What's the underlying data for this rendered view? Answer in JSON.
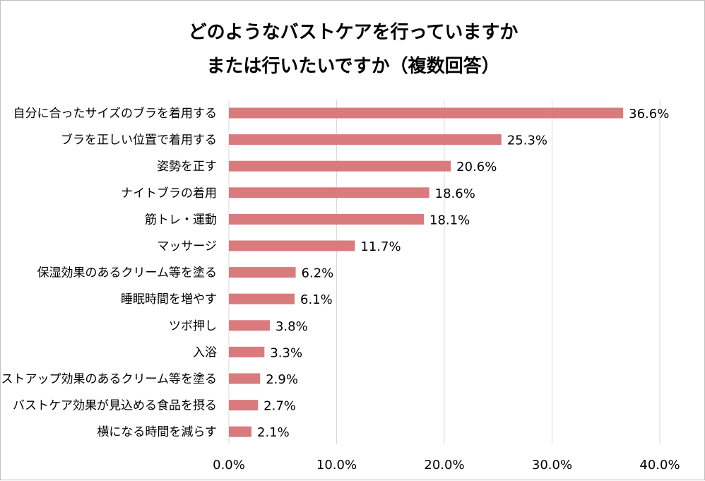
{
  "chart_data": {
    "type": "bar",
    "orientation": "horizontal",
    "title_lines": [
      "どのようなバストケアを行っていますか",
      "または行いたいですか（複数回答）"
    ],
    "categories": [
      "自分に合ったサイズのブラを着用する",
      "ブラを正しい位置で着用する",
      "姿勢を正す",
      "ナイトブラの着用",
      "筋トレ・運動",
      "マッサージ",
      "保湿効果のあるクリーム等を塗る",
      "睡眠時間を増やす",
      "ツボ押し",
      "入浴",
      "バストアップ効果のあるクリーム等を塗る",
      "バストケア効果が見込める食品を摂る",
      "横になる時間を減らす"
    ],
    "values": [
      36.6,
      25.3,
      20.6,
      18.6,
      18.1,
      11.7,
      6.2,
      6.1,
      3.8,
      3.3,
      2.9,
      2.7,
      2.1
    ],
    "value_labels": [
      "36.6%",
      "25.3%",
      "20.6%",
      "18.6%",
      "18.1%",
      "11.7%",
      "6.2%",
      "6.1%",
      "3.8%",
      "3.3%",
      "2.9%",
      "2.7%",
      "2.1%"
    ],
    "x_ticks": [
      0,
      10,
      20,
      30,
      40
    ],
    "x_tick_labels": [
      "0.0%",
      "10.0%",
      "20.0%",
      "30.0%",
      "40.0%"
    ],
    "xlim": [
      0,
      40
    ],
    "grid": true,
    "legend": "none",
    "bar_color": "#d97b7d",
    "grid_color": "#d9d9d9"
  }
}
